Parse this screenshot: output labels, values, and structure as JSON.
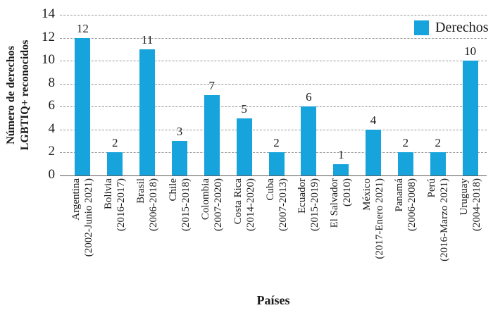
{
  "chart_data": {
    "type": "bar",
    "title": "",
    "xlabel": "Países",
    "ylabel": "Número de derechos LGBTIQ+ reconocidos",
    "ylabel_lines": [
      "Número de derechos",
      "LGBTIQ+ reconocidos"
    ],
    "legend": {
      "label": "Derechos",
      "position": "top-right"
    },
    "colors": {
      "bar": "#17A4DD",
      "grid": "#979797",
      "axis": "#5A5A5A",
      "text": "#1A1A1A"
    },
    "ylim": [
      0,
      14
    ],
    "ytick_step": 2,
    "grid": "horizontal-dashed",
    "categories": [
      "Argentina",
      "Bolivia",
      "Brasil",
      "Chile",
      "Colombia",
      "Costa Rica",
      "Cuba",
      "Ecuador",
      "El Salvador",
      "México",
      "Panamá",
      "Perú",
      "Uruguay"
    ],
    "category_periods": [
      "(2002-Junio 2021)",
      "(2016-2017)",
      "(2006-2018)",
      "(2015-2018)",
      "(2007-2020)",
      "(2014-2020)",
      "(2007-2013)",
      "(2015-2019)",
      "(2010)",
      "(2017-Enero 2021)",
      "(2006-2008)",
      "(2016-Marzo 2021)",
      "(2004-2018)"
    ],
    "values": [
      12,
      2,
      11,
      3,
      7,
      5,
      2,
      6,
      1,
      4,
      2,
      2,
      10
    ]
  }
}
